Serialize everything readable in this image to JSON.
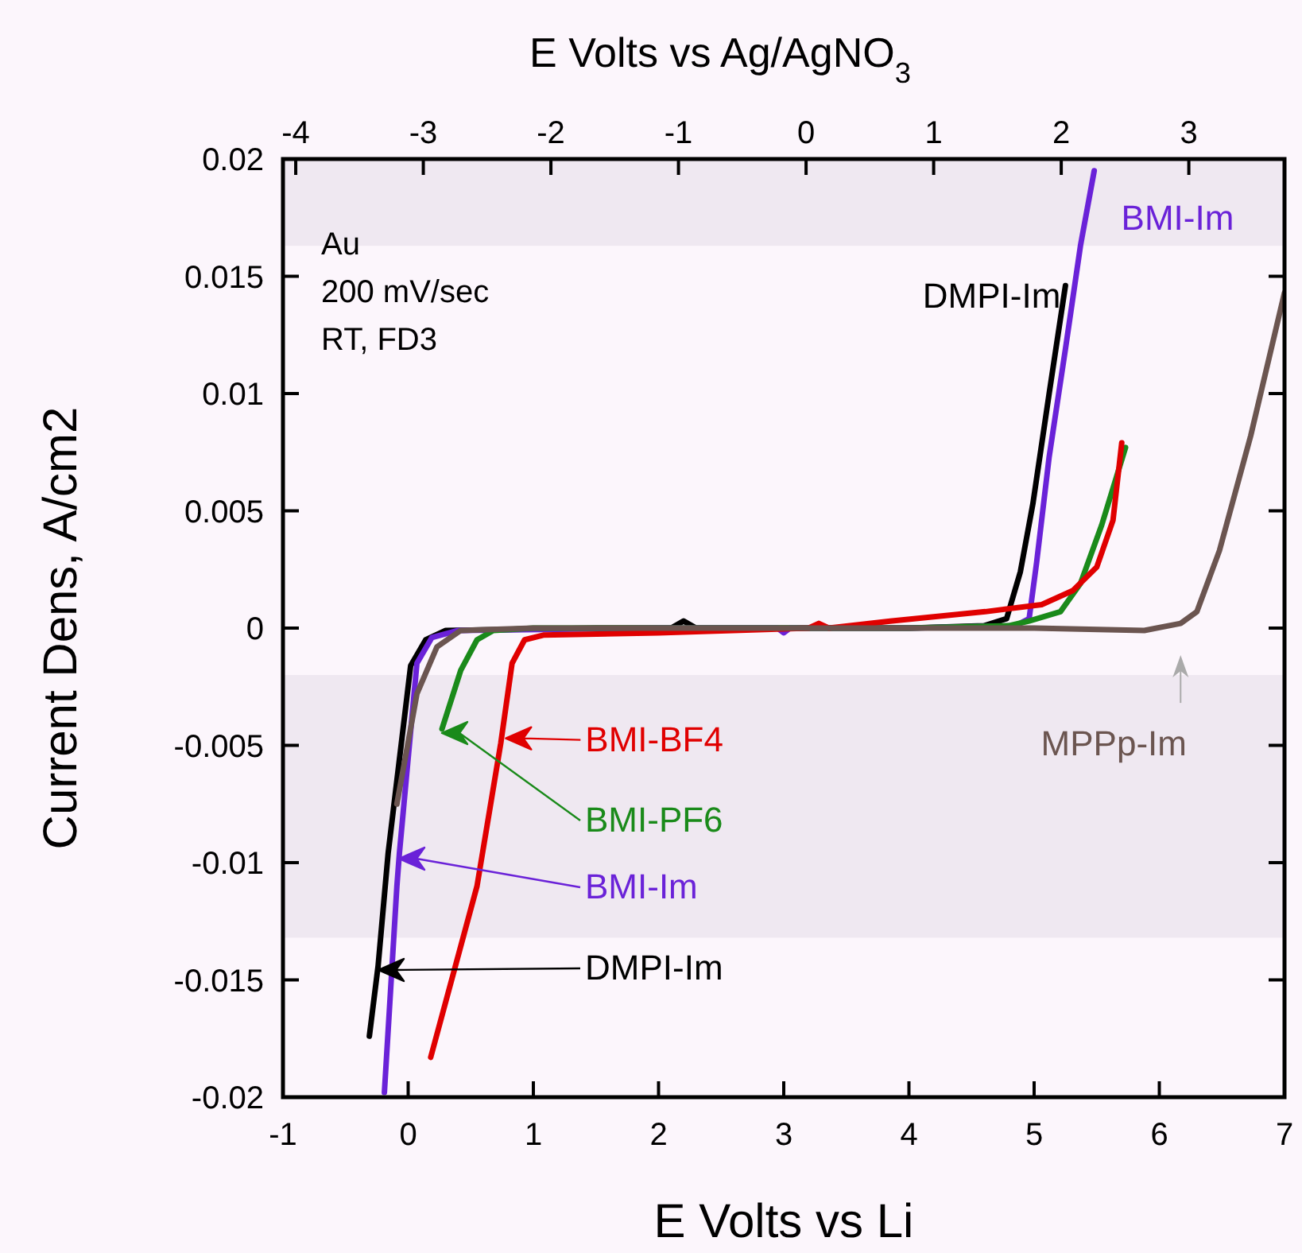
{
  "chart_data": {
    "type": "line",
    "xlabel": "E  Volts vs Li",
    "x2label": "E  Volts vs Ag/AgNO$_{3}$",
    "ylabel": "Current Dens, A/cm2",
    "xlim": [
      -1,
      7
    ],
    "xticks": [
      -1,
      0,
      1,
      2,
      3,
      4,
      5,
      6,
      7
    ],
    "x2lim": [
      -4.1,
      3.75
    ],
    "x2ticks": [
      -4,
      -3,
      -2,
      -1,
      0,
      1,
      2,
      3
    ],
    "ylim": [
      -0.02,
      0.02
    ],
    "yticks": [
      -0.02,
      -0.015,
      -0.01,
      -0.005,
      0,
      0.005,
      0.01,
      0.015,
      0.02
    ],
    "grid": false,
    "marker": "none",
    "line_style": "solid",
    "bands": [
      {
        "axis": "y",
        "from": -0.0132,
        "to": -0.002,
        "color": "#efe8f1"
      },
      {
        "axis": "y",
        "from": 0.0163,
        "to": 0.02,
        "color": "#efe8f1"
      }
    ],
    "series": [
      {
        "color": "#000000",
        "x": [
          -0.31,
          -0.24,
          -0.16,
          0.02,
          0.14,
          0.3,
          1.5,
          2.1,
          2.2,
          2.3,
          3,
          4,
          4.6,
          4.78,
          4.89,
          4.99,
          5.12,
          5.25
        ],
        "values": [
          -0.0174,
          -0.0144,
          -0.0096,
          -0.0016,
          -0.0005,
          -0.0001,
          0,
          0,
          0.0003,
          0,
          0,
          0,
          0.0001,
          0.0004,
          0.0024,
          0.0053,
          0.01,
          0.0146
        ]
      },
      {
        "color": "#6a22d8",
        "x": [
          -0.19,
          -0.09,
          -0.07,
          0.07,
          0.19,
          0.4,
          2,
          2.95,
          3,
          3.05,
          4,
          4.85,
          4.96,
          5.02,
          5.12,
          5.25,
          5.37,
          5.48
        ],
        "values": [
          -0.0198,
          -0.011,
          -0.0096,
          -0.0015,
          -0.0004,
          -0.0001,
          0,
          0,
          -0.0002,
          0,
          0,
          0.0001,
          0.0004,
          0.0028,
          0.0073,
          0.0119,
          0.0163,
          0.0195
        ]
      },
      {
        "color": "#1a8a1a",
        "x": [
          0.27,
          0.42,
          0.55,
          0.68,
          1,
          2,
          3,
          4,
          4.8,
          4.96,
          5.21,
          5.37,
          5.54,
          5.73
        ],
        "values": [
          -0.0043,
          -0.0018,
          -0.0005,
          -0.0001,
          0,
          0,
          0,
          0,
          0.0001,
          0.0003,
          0.0007,
          0.0019,
          0.0044,
          0.0077
        ]
      },
      {
        "color": "#e00000",
        "x": [
          0.18,
          0.55,
          0.74,
          0.83,
          0.93,
          1.08,
          2,
          3.2,
          3.28,
          3.36,
          3.85,
          4.61,
          5.06,
          5.31,
          5.5,
          5.63,
          5.7
        ],
        "values": [
          -0.0183,
          -0.011,
          -0.0049,
          -0.0015,
          -0.0005,
          -0.0003,
          -0.0002,
          0,
          0.0002,
          0,
          0.0003,
          0.0007,
          0.001,
          0.0016,
          0.0026,
          0.0046,
          0.0079
        ]
      },
      {
        "color": "#6b5550",
        "x": [
          -0.09,
          0.07,
          0.23,
          0.42,
          1,
          2,
          3,
          4,
          5,
          5.88,
          6.17,
          6.3,
          6.48,
          6.73,
          7
        ],
        "values": [
          -0.0075,
          -0.0028,
          -0.0008,
          -0.0001,
          0,
          0,
          0,
          0,
          0,
          -0.0001,
          0.0002,
          0.0007,
          0.0033,
          0.0082,
          0.0143
        ]
      }
    ],
    "annotations": [
      "Au",
      "200 mV/sec",
      "RT, FD3",
      {
        "text": "BMI-BF4",
        "x": 0.78,
        "y": -0.0047
      },
      "BMI-PF6",
      "BMI-Im",
      "DMPI-Im",
      {
        "text": "MPPp-Im",
        "x": 6.17,
        "y": 0.0002
      },
      {
        "text": "BMI-Im",
        "x": 5.48,
        "y": 0.0195
      },
      {
        "text": "DMPI-Im",
        "x": 5.25,
        "y": 0.0146
      }
    ]
  }
}
